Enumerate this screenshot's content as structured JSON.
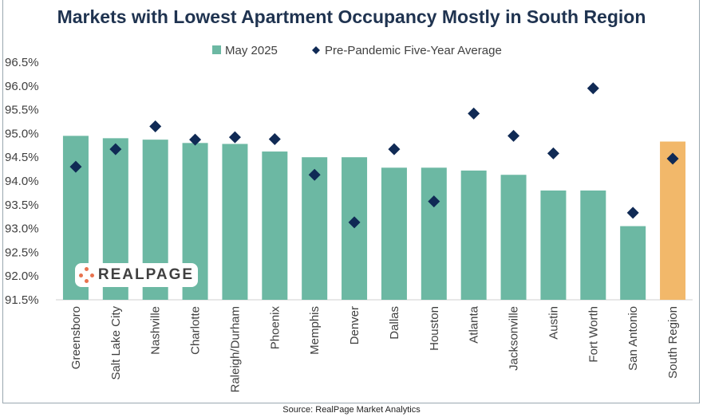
{
  "title": "Markets with Lowest Apartment Occupancy Mostly in South Region",
  "source": "Source: RealPage Market Analytics",
  "logo_text": "REALPAGE",
  "colors": {
    "bar": "#6cb8a3",
    "highlight_bar": "#f2b86a",
    "marker": "#102a55",
    "title": "#1f3350"
  },
  "chart_data": {
    "type": "bar",
    "title": "Markets with Lowest Apartment Occupancy Mostly in South Region",
    "categories": [
      "Greensboro",
      "Salt Lake City",
      "Nashville",
      "Charlotte",
      "Raleigh/Durham",
      "Phoenix",
      "Memphis",
      "Denver",
      "Dallas",
      "Houston",
      "Atlanta",
      "Jacksonville",
      "Austin",
      "Fort Worth",
      "San Antonio",
      "South Region"
    ],
    "series": [
      {
        "name": "May 2025",
        "kind": "bar",
        "values": [
          94.95,
          94.9,
          94.87,
          94.8,
          94.78,
          94.62,
          94.5,
          94.5,
          94.28,
          94.28,
          94.22,
          94.13,
          93.8,
          93.8,
          93.05,
          94.83
        ]
      },
      {
        "name": "Pre-Pandemic Five-Year Average",
        "kind": "marker",
        "values": [
          94.3,
          94.67,
          95.15,
          94.87,
          94.92,
          94.88,
          94.13,
          93.13,
          94.67,
          93.57,
          95.42,
          94.95,
          94.58,
          95.95,
          93.33,
          94.47
        ]
      }
    ],
    "highlight_category": "South Region",
    "ylim": [
      91.5,
      96.5
    ],
    "yticks": [
      "91.5%",
      "92.0%",
      "92.5%",
      "93.0%",
      "93.5%",
      "94.0%",
      "94.5%",
      "95.0%",
      "95.5%",
      "96.0%",
      "96.5%"
    ],
    "grid": false,
    "legend": "top-center",
    "legend_entries": [
      "May 2025",
      "Pre-Pandemic Five-Year Average"
    ]
  }
}
